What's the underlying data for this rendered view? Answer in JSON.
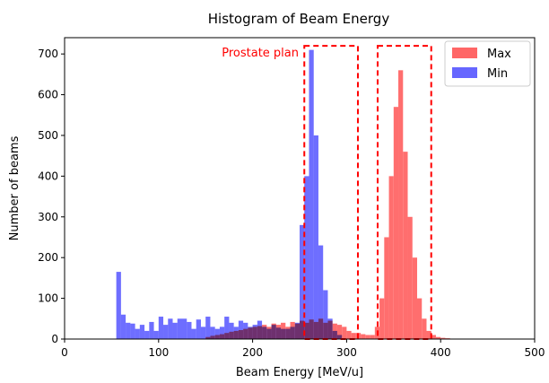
{
  "chart_data": {
    "type": "histogram",
    "title": "Histogram of Beam Energy",
    "xlabel": "Beam Energy [MeV/u]",
    "ylabel": "Number of beams",
    "xlim": [
      0,
      500
    ],
    "ylim": [
      0,
      740
    ],
    "xticks": [
      0,
      100,
      200,
      300,
      400,
      500
    ],
    "yticks": [
      0,
      100,
      200,
      300,
      400,
      500,
      600,
      700
    ],
    "grid": false,
    "bin_width": 5,
    "legend": {
      "placement": "top-right",
      "entries": [
        "Max",
        "Min"
      ]
    },
    "series": [
      {
        "name": "Max",
        "color": "#ff6666",
        "bin_start": 150,
        "values": [
          5,
          8,
          10,
          12,
          15,
          18,
          20,
          22,
          25,
          28,
          30,
          32,
          35,
          30,
          38,
          35,
          40,
          30,
          42,
          38,
          45,
          40,
          48,
          42,
          50,
          40,
          45,
          38,
          35,
          30,
          20,
          15,
          15,
          12,
          10,
          10,
          30,
          100,
          250,
          400,
          570,
          660,
          460,
          300,
          200,
          100,
          50,
          20,
          10,
          5,
          3,
          2,
          1,
          1
        ]
      },
      {
        "name": "Min",
        "color": "#6666ff",
        "bin_start": 55,
        "values": [
          165,
          60,
          40,
          38,
          25,
          35,
          20,
          42,
          20,
          55,
          35,
          50,
          40,
          50,
          50,
          42,
          25,
          48,
          30,
          55,
          30,
          25,
          30,
          55,
          40,
          30,
          45,
          40,
          30,
          35,
          45,
          30,
          25,
          35,
          28,
          25,
          25,
          30,
          40,
          280,
          400,
          710,
          500,
          230,
          120,
          50,
          20,
          10
        ]
      }
    ],
    "annotations": [
      {
        "text": "Prostate plan",
        "color": "#ff0000"
      }
    ],
    "boxes": [
      {
        "style": "dashed",
        "color": "#ff0000",
        "x_range": [
          255,
          312
        ],
        "y_range": [
          0,
          720
        ]
      },
      {
        "style": "dashed",
        "color": "#ff0000",
        "x_range": [
          333,
          390
        ],
        "y_range": [
          0,
          720
        ]
      }
    ]
  }
}
